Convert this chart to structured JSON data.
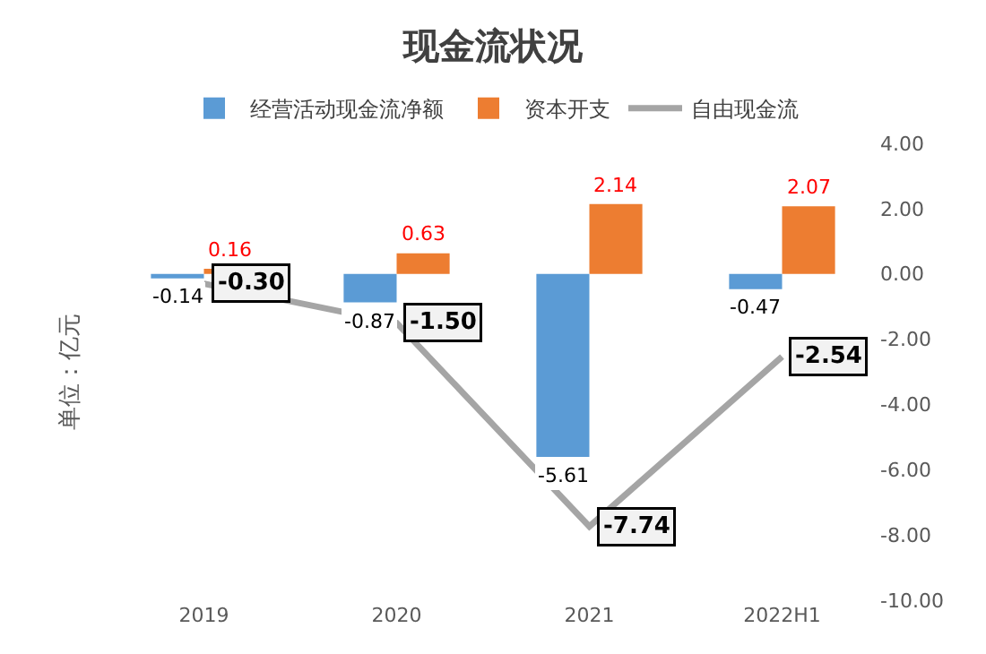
{
  "chart_data": {
    "type": "bar",
    "title": "现金流状况",
    "ylabel": "单位：亿元",
    "categories": [
      "2019",
      "2020",
      "2021",
      "2022H1"
    ],
    "series": [
      {
        "name": "经营活动现金流净额",
        "color": "#5b9bd5",
        "values": [
          -0.14,
          -0.87,
          -5.61,
          -0.47
        ],
        "value_labels": [
          "-0.14",
          "-0.87",
          "-5.61",
          "-0.47"
        ]
      },
      {
        "name": "资本开支",
        "color": "#ed7d31",
        "values": [
          0.16,
          0.63,
          2.14,
          2.07
        ],
        "value_labels": [
          "0.16",
          "0.63",
          "2.14",
          "2.07"
        ]
      },
      {
        "name": "自由现金流",
        "type": "line",
        "color": "#a5a5a5",
        "values": [
          -0.3,
          -1.5,
          -7.74,
          -2.54
        ],
        "value_labels": [
          "-0.30",
          "-1.50",
          "-7.74",
          "-2.54"
        ]
      }
    ],
    "ylim": [
      -10,
      4
    ],
    "yticks": [
      {
        "value": 4,
        "label": "4.00"
      },
      {
        "value": 2,
        "label": "2.00"
      },
      {
        "value": 0,
        "label": "0.00"
      },
      {
        "value": -2,
        "label": "-2.00"
      },
      {
        "value": -4,
        "label": "-4.00"
      },
      {
        "value": -6,
        "label": "-6.00"
      },
      {
        "value": -8,
        "label": "-8.00"
      },
      {
        "value": -10,
        "label": "-10.00"
      }
    ],
    "legend": "top",
    "data_labels": true,
    "marker": "none",
    "line_style": "solid"
  }
}
